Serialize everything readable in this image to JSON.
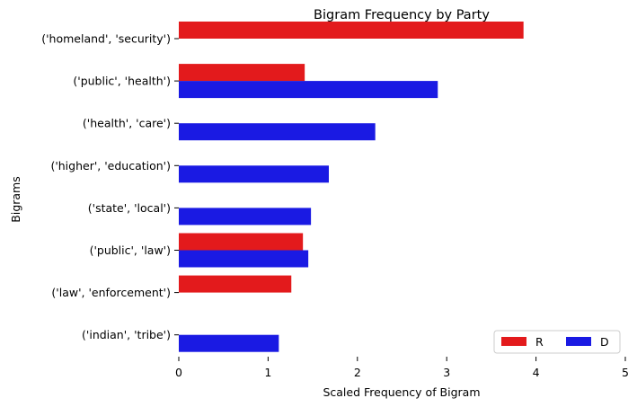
{
  "chart_data": {
    "type": "bar",
    "orientation": "horizontal",
    "title": "Bigram Frequency by Party",
    "xlabel": "Scaled Frequency of Bigram",
    "ylabel": "Bigrams",
    "xlim": [
      0,
      5
    ],
    "xticks": [
      "0",
      "1",
      "2",
      "3",
      "4",
      "5"
    ],
    "grid": false,
    "legend_position": "lower-right",
    "categories": [
      "('homeland', 'security')",
      "('public', 'health')",
      "('health', 'care')",
      "('higher', 'education')",
      "('state', 'local')",
      "('public', 'law')",
      "('law', 'enforcement')",
      "('indian', 'tribe')"
    ],
    "series": [
      {
        "name": "R",
        "color": "#e31a1c",
        "values": [
          3.86,
          1.41,
          0,
          0,
          0,
          1.39,
          1.26,
          0
        ]
      },
      {
        "name": "D",
        "color": "#1a1ae3",
        "values": [
          0,
          2.9,
          2.2,
          1.68,
          1.48,
          1.45,
          0,
          1.12
        ]
      }
    ]
  }
}
